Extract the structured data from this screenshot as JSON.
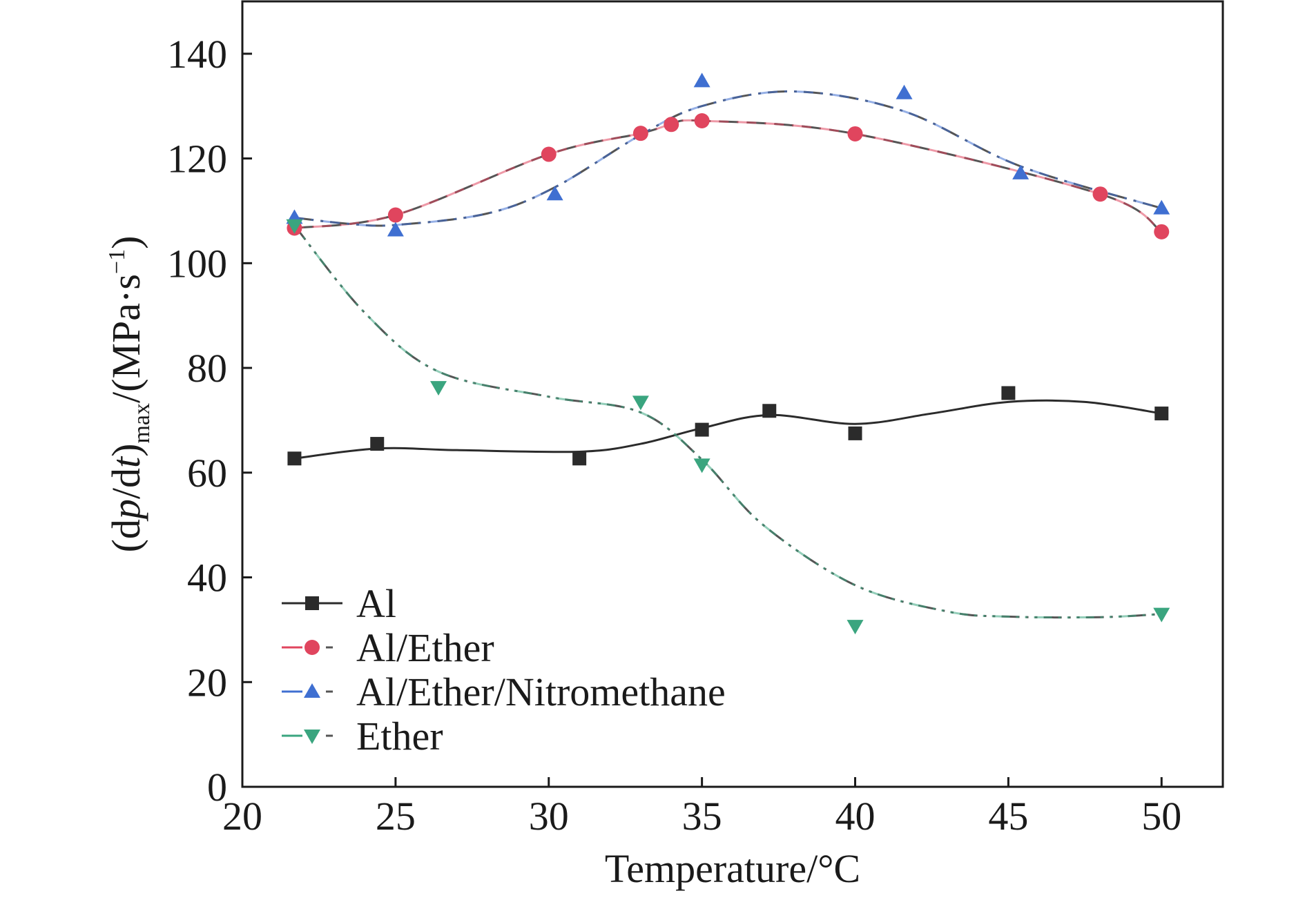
{
  "chart_data": {
    "type": "line",
    "xlabel": "Temperature/°C",
    "ylabel": {
      "paren_open": "(d",
      "p": "p",
      "slash_d": "/d",
      "t": "t",
      "paren_close": ")",
      "subscript": "max",
      "units_open": "/(MPa·s",
      "exponent": "−1",
      "units_close": ")"
    },
    "xlim": [
      20,
      52
    ],
    "ylim": [
      0,
      150
    ],
    "xticks": [
      20,
      25,
      30,
      35,
      40,
      45,
      50
    ],
    "yticks": [
      0,
      20,
      40,
      60,
      80,
      100,
      120,
      140
    ],
    "grid": false,
    "legend_position": "lower-left",
    "series": [
      {
        "name": "Al",
        "color": "#2b2b2b",
        "marker": "square",
        "dash": "solid",
        "x": [
          21.7,
          24.4,
          31.0,
          35.0,
          37.2,
          40.0,
          45.0,
          50.0
        ],
        "y": [
          62.7,
          65.5,
          62.7,
          68.2,
          71.8,
          67.5,
          75.2,
          71.3
        ]
      },
      {
        "name": "Al/Ether",
        "color": "#e0455e",
        "marker": "circle",
        "dash": "dash",
        "x": [
          21.7,
          25.0,
          30.0,
          33.0,
          34.0,
          35.0,
          40.0,
          48.0,
          50.0
        ],
        "y": [
          106.7,
          109.2,
          120.8,
          124.8,
          126.5,
          127.2,
          124.7,
          113.2,
          106.0
        ]
      },
      {
        "name": "Al/Ether/Nitromethane",
        "color": "#3f6fd1",
        "marker": "triangle-up",
        "dash": "dashdot",
        "x": [
          21.7,
          25.0,
          30.2,
          35.0,
          41.6,
          45.4,
          50.0
        ],
        "y": [
          108.7,
          106.3,
          113.2,
          134.8,
          132.5,
          117.2,
          110.5
        ]
      },
      {
        "name": "Ether",
        "color": "#3aa57f",
        "marker": "triangle-down",
        "dash": "dashdotdot",
        "x": [
          21.7,
          26.4,
          33.0,
          35.0,
          40.0,
          50.0
        ],
        "y": [
          107.2,
          76.3,
          73.5,
          61.5,
          30.7,
          33.0
        ]
      }
    ],
    "fit_lines": [
      {
        "series": "Al",
        "x": [
          21.7,
          24.4,
          27.0,
          31.0,
          33.0,
          35.0,
          37.2,
          40.0,
          42.5,
          45.0,
          47.5,
          50.0
        ],
        "y": [
          62.7,
          64.6,
          64.3,
          64.0,
          65.5,
          68.5,
          71.0,
          69.3,
          71.3,
          73.5,
          73.5,
          71.3
        ]
      },
      {
        "series": "Al/Ether",
        "x": [
          21.7,
          25.0,
          30.0,
          33.0,
          34.0,
          35.0,
          40.0,
          48.0,
          50.0
        ],
        "y": [
          106.7,
          109.2,
          120.8,
          124.8,
          126.5,
          127.2,
          124.7,
          113.2,
          106.0
        ]
      },
      {
        "series": "Al/Ether/Nitromethane",
        "x": [
          21.7,
          23.5,
          25.0,
          28.0,
          30.2,
          33.0,
          35.0,
          38.0,
          41.6,
          45.4,
          50.0
        ],
        "y": [
          108.7,
          107.5,
          107.3,
          109.5,
          114.5,
          124.5,
          130.0,
          132.8,
          129.0,
          118.5,
          110.5
        ]
      },
      {
        "series": "Ether",
        "x": [
          21.7,
          24.0,
          26.4,
          30.0,
          33.0,
          35.0,
          37.0,
          40.0,
          43.0,
          45.0,
          48.0,
          50.0
        ],
        "y": [
          107.2,
          90.5,
          79.3,
          74.5,
          71.5,
          62.5,
          50.0,
          38.5,
          33.5,
          32.5,
          32.4,
          33.0
        ]
      }
    ]
  }
}
